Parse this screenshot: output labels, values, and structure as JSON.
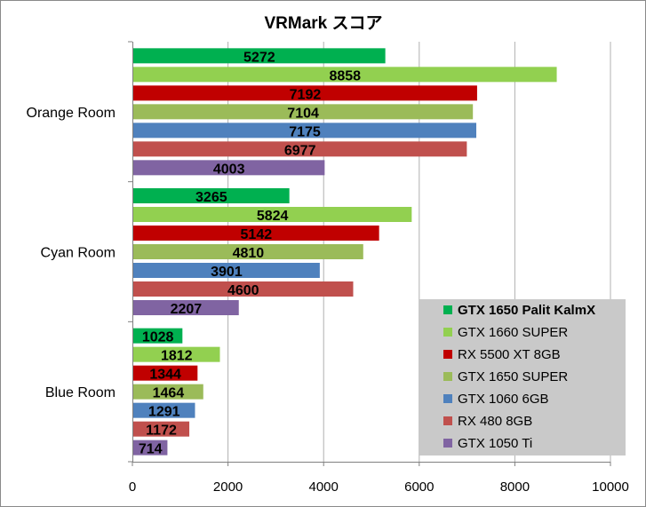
{
  "chart_data": {
    "type": "bar",
    "orientation": "horizontal",
    "title": "VRMark スコア",
    "xlabel": "",
    "ylabel": "",
    "xlim": [
      0,
      10000
    ],
    "xticks": [
      "0",
      "2000",
      "4000",
      "6000",
      "8000",
      "10000"
    ],
    "grid": "vertical",
    "legend_position": "bottom-right",
    "categories": [
      "Orange Room",
      "Cyan Room",
      "Blue Room"
    ],
    "series": [
      {
        "name": "GTX 1650 Palit KalmX",
        "color": "#00b050",
        "bold": true,
        "values": [
          5272,
          3265,
          1028
        ]
      },
      {
        "name": "GTX 1660 SUPER",
        "color": "#92d050",
        "bold": false,
        "values": [
          8858,
          5824,
          1812
        ]
      },
      {
        "name": "RX 5500 XT 8GB",
        "color": "#c00000",
        "bold": false,
        "values": [
          7192,
          5142,
          1344
        ]
      },
      {
        "name": "GTX 1650 SUPER",
        "color": "#9bbb59",
        "bold": false,
        "values": [
          7104,
          4810,
          1464
        ]
      },
      {
        "name": "GTX 1060 6GB",
        "color": "#4f81bd",
        "bold": false,
        "values": [
          7175,
          3901,
          1291
        ]
      },
      {
        "name": "RX 480 8GB",
        "color": "#c0504d",
        "bold": false,
        "values": [
          6977,
          4600,
          1172
        ]
      },
      {
        "name": "GTX 1050 Ti",
        "color": "#8064a2",
        "bold": false,
        "values": [
          4003,
          2207,
          714
        ]
      }
    ]
  }
}
